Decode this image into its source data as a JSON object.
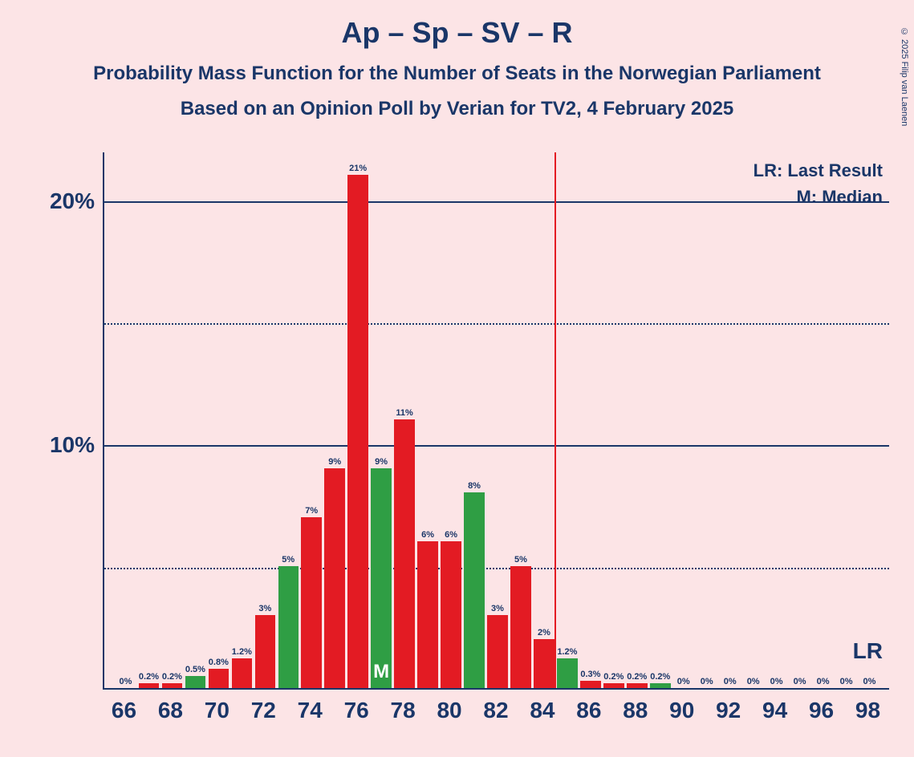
{
  "title": "Ap – Sp – SV – R",
  "subtitle1": "Probability Mass Function for the Number of Seats in the Norwegian Parliament",
  "subtitle2": "Based on an Opinion Poll by Verian for TV2, 4 February 2025",
  "copyright": "© 2025 Filip van Laenen",
  "legend": {
    "lr": "LR: Last Result",
    "m": "M: Median"
  },
  "lr_axis_label": "LR",
  "median_marker": "M",
  "chart": {
    "type": "bar",
    "background_color": "#fce4e6",
    "axis_color": "#1a3668",
    "text_color": "#1a3668",
    "title_fontsize": 36,
    "subtitle_fontsize": 24,
    "axis_label_fontsize": 28,
    "bar_label_fontsize": 11,
    "ylim": [
      0,
      22
    ],
    "y_gridlines": [
      {
        "value": 5,
        "style": "dotted",
        "label": ""
      },
      {
        "value": 10,
        "style": "solid",
        "label": "10%"
      },
      {
        "value": 15,
        "style": "dotted",
        "label": ""
      },
      {
        "value": 20,
        "style": "solid",
        "label": "20%"
      }
    ],
    "x_range": [
      66,
      98
    ],
    "x_ticks": [
      66,
      68,
      70,
      72,
      74,
      76,
      78,
      80,
      82,
      84,
      86,
      88,
      90,
      92,
      94,
      96,
      98
    ],
    "lr_position": 85,
    "lr_line_color": "#e31b23",
    "median_position": 77,
    "bar_colors": {
      "red": "#e31b23",
      "green": "#2f9e44"
    },
    "bar_width_ratio": 0.88,
    "bars": [
      {
        "x": 66,
        "value": 0,
        "label": "0%",
        "color": "red"
      },
      {
        "x": 67,
        "value": 0.2,
        "label": "0.2%",
        "color": "red"
      },
      {
        "x": 68,
        "value": 0.2,
        "label": "0.2%",
        "color": "red"
      },
      {
        "x": 69,
        "value": 0.5,
        "label": "0.5%",
        "color": "green"
      },
      {
        "x": 70,
        "value": 0.8,
        "label": "0.8%",
        "color": "red"
      },
      {
        "x": 71,
        "value": 1.2,
        "label": "1.2%",
        "color": "red"
      },
      {
        "x": 72,
        "value": 3,
        "label": "3%",
        "color": "red"
      },
      {
        "x": 73,
        "value": 5,
        "label": "5%",
        "color": "green"
      },
      {
        "x": 74,
        "value": 7,
        "label": "7%",
        "color": "red"
      },
      {
        "x": 75,
        "value": 9,
        "label": "9%",
        "color": "red"
      },
      {
        "x": 76,
        "value": 21,
        "label": "21%",
        "color": "red"
      },
      {
        "x": 77,
        "value": 9,
        "label": "9%",
        "color": "green"
      },
      {
        "x": 78,
        "value": 11,
        "label": "11%",
        "color": "red"
      },
      {
        "x": 79,
        "value": 6,
        "label": "6%",
        "color": "red"
      },
      {
        "x": 80,
        "value": 6,
        "label": "6%",
        "color": "red"
      },
      {
        "x": 81,
        "value": 8,
        "label": "8%",
        "color": "green"
      },
      {
        "x": 82,
        "value": 3,
        "label": "3%",
        "color": "red"
      },
      {
        "x": 83,
        "value": 5,
        "label": "5%",
        "color": "red"
      },
      {
        "x": 84,
        "value": 2,
        "label": "2%",
        "color": "red"
      },
      {
        "x": 85,
        "value": 1.2,
        "label": "1.2%",
        "color": "green"
      },
      {
        "x": 86,
        "value": 0.3,
        "label": "0.3%",
        "color": "red"
      },
      {
        "x": 87,
        "value": 0.2,
        "label": "0.2%",
        "color": "red"
      },
      {
        "x": 88,
        "value": 0.2,
        "label": "0.2%",
        "color": "red"
      },
      {
        "x": 89,
        "value": 0.2,
        "label": "0.2%",
        "color": "green"
      },
      {
        "x": 90,
        "value": 0,
        "label": "0%",
        "color": "red"
      },
      {
        "x": 91,
        "value": 0,
        "label": "0%",
        "color": "red"
      },
      {
        "x": 92,
        "value": 0,
        "label": "0%",
        "color": "red"
      },
      {
        "x": 93,
        "value": 0,
        "label": "0%",
        "color": "red"
      },
      {
        "x": 94,
        "value": 0,
        "label": "0%",
        "color": "red"
      },
      {
        "x": 95,
        "value": 0,
        "label": "0%",
        "color": "red"
      },
      {
        "x": 96,
        "value": 0,
        "label": "0%",
        "color": "red"
      },
      {
        "x": 97,
        "value": 0,
        "label": "0%",
        "color": "red"
      },
      {
        "x": 98,
        "value": 0,
        "label": "0%",
        "color": "red"
      }
    ]
  }
}
